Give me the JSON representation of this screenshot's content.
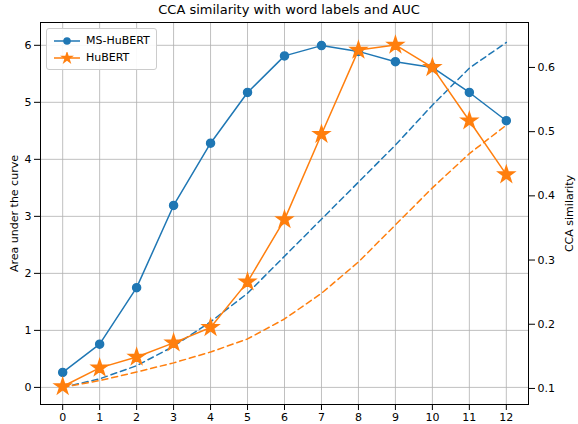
{
  "chart_data": {
    "type": "line",
    "title": "CCA similarity with word labels and AUC",
    "x": [
      0,
      1,
      2,
      3,
      4,
      5,
      6,
      7,
      8,
      9,
      10,
      11,
      12
    ],
    "xlim": [
      -0.6,
      12.6
    ],
    "xticks": [
      0,
      1,
      2,
      3,
      4,
      5,
      6,
      7,
      8,
      9,
      10,
      11,
      12
    ],
    "ylabel": "Area under the curve",
    "ylim": [
      -0.3,
      6.4
    ],
    "yticks": [
      0,
      1,
      2,
      3,
      4,
      5,
      6
    ],
    "y2label": "CCA similarity",
    "y2lim": [
      0.075,
      0.67
    ],
    "y2ticks": [
      0.1,
      0.2,
      0.3,
      0.4,
      0.5,
      0.6
    ],
    "grid": true,
    "legend": "upper left",
    "series": [
      {
        "name": "MS-HuBERT",
        "color": "#1f77b4",
        "marker": "circle",
        "axis": "y2",
        "values": [
          0.125,
          0.169,
          0.257,
          0.385,
          0.482,
          0.561,
          0.618,
          0.634,
          0.625,
          0.609,
          0.6,
          0.561,
          0.517
        ],
        "auc": [
          0,
          0.15,
          0.38,
          0.72,
          1.15,
          1.65,
          2.3,
          2.95,
          3.6,
          4.25,
          4.95,
          5.6,
          6.05
        ]
      },
      {
        "name": "HuBERT",
        "color": "#ff7f0e",
        "marker": "star",
        "axis": "y2",
        "values": [
          0.103,
          0.132,
          0.149,
          0.171,
          0.195,
          0.266,
          0.363,
          0.496,
          0.627,
          0.635,
          0.6,
          0.517,
          0.433
        ],
        "auc": [
          0,
          0.12,
          0.27,
          0.43,
          0.62,
          0.85,
          1.2,
          1.65,
          2.2,
          2.85,
          3.5,
          4.1,
          4.6
        ]
      }
    ]
  }
}
